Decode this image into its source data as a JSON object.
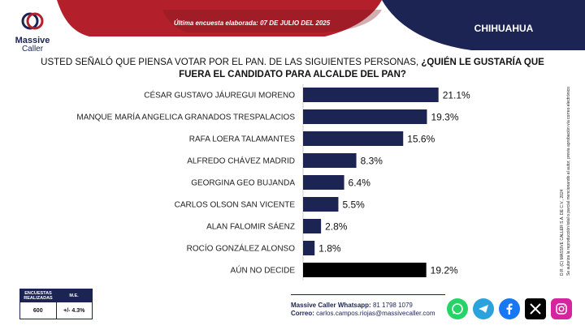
{
  "header": {
    "logo_name": "Massive",
    "logo_sub": "Caller",
    "survey_date": "Última encuesta elaborada: 07 DE JULIO DEL 2025",
    "region": "CHIHUAHUA"
  },
  "question": {
    "part1": "USTED SEÑALÓ QUE PIENSA VOTAR POR EL PAN. DE LAS SIGUIENTES PERSONAS,",
    "part2": "¿QUIÉN LE GUSTARÍA QUE FUERA EL CANDIDATO PARA ALCALDE DEL PAN?"
  },
  "chart_data": {
    "type": "bar",
    "orientation": "horizontal",
    "categories": [
      "CÉSAR GUSTAVO JÁUREGUI MORENO",
      "MANQUE MARÍA ANGELICA GRANADOS TRESPALACIOS",
      "RAFA LOERA TALAMANTES",
      "ALFREDO CHÁVEZ MADRID",
      "GEORGINA GEO BUJANDA",
      "CARLOS OLSON SAN VICENTE",
      "ALAN FALOMIR SÁENZ",
      "ROCÍO GONZÁLEZ ALONSO",
      "AÚN NO DECIDE"
    ],
    "values": [
      21.1,
      19.3,
      15.6,
      8.3,
      6.4,
      5.5,
      2.8,
      1.8,
      19.2
    ],
    "value_labels": [
      "21.1%",
      "19.3%",
      "15.6%",
      "8.3%",
      "6.4%",
      "5.5%",
      "2.8%",
      "1.8%",
      "19.2%"
    ],
    "bar_colors": [
      "#1c2454",
      "#1c2454",
      "#1c2454",
      "#1c2454",
      "#1c2454",
      "#1c2454",
      "#1c2454",
      "#1c2454",
      "#000000"
    ],
    "xlim": [
      0,
      25
    ],
    "grid": false
  },
  "side_note": {
    "line1": "D.R. (C) MASSIVE CALLER S.A. DE C.V., 2024",
    "line2": "Se autoriza la reproducción total o parcial mencionando al autor, previa aprobación vía correo electrónico"
  },
  "stats": {
    "surveys_label": "ENCUESTAS REALIZADAS",
    "surveys_value": "600",
    "me_label": "M.E.",
    "me_value": "+/- 4.3%"
  },
  "contact": {
    "whatsapp_label": "Massive Caller Whatsapp:",
    "whatsapp_value": "81 1798 1079",
    "email_label": "Correo:",
    "email_value": "carlos.campos.riojas@massivecaller.com"
  },
  "colors": {
    "navy": "#1c2454",
    "red": "#b3202b",
    "whatsapp": "#25d366",
    "telegram": "#2aa3dd",
    "facebook": "#1877f2",
    "x": "#000000",
    "instagram": "#d6249f"
  },
  "social_icons": [
    "whatsapp-icon",
    "telegram-icon",
    "facebook-icon",
    "x-icon",
    "instagram-icon"
  ]
}
